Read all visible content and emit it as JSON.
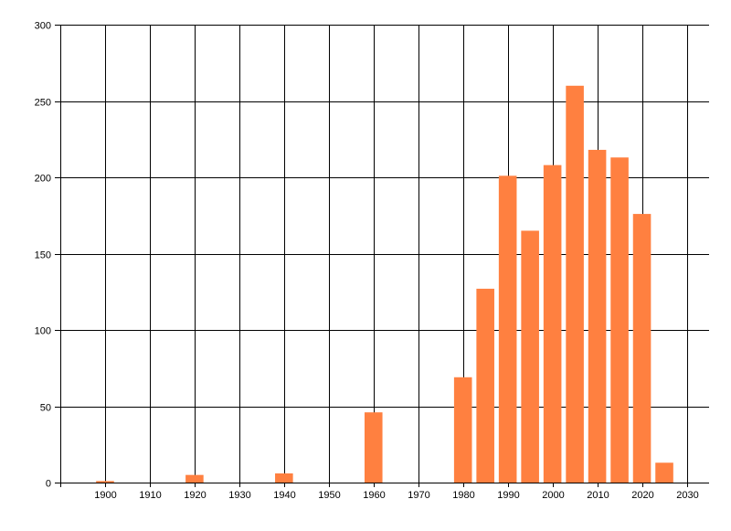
{
  "chart_data": {
    "type": "bar",
    "title": "",
    "xlabel": "",
    "ylabel": "",
    "x": [
      1900,
      1920,
      1940,
      1960,
      1980,
      1985,
      1990,
      1995,
      2000,
      2005,
      2010,
      2015,
      2020,
      2025
    ],
    "values": [
      1,
      5,
      6,
      46,
      69,
      127,
      201,
      165,
      208,
      260,
      218,
      213,
      176,
      13
    ],
    "bar_width_years": 4,
    "xlim": [
      1890,
      2035
    ],
    "ylim": [
      0,
      300
    ],
    "x_ticks": [
      1900,
      1910,
      1920,
      1930,
      1940,
      1950,
      1960,
      1970,
      1980,
      1990,
      2000,
      2010,
      2020,
      2030
    ],
    "y_ticks": [
      0,
      50,
      100,
      150,
      200,
      250,
      300
    ],
    "grid": true,
    "bar_color": "#FF8040",
    "grid_color": "#000000"
  }
}
